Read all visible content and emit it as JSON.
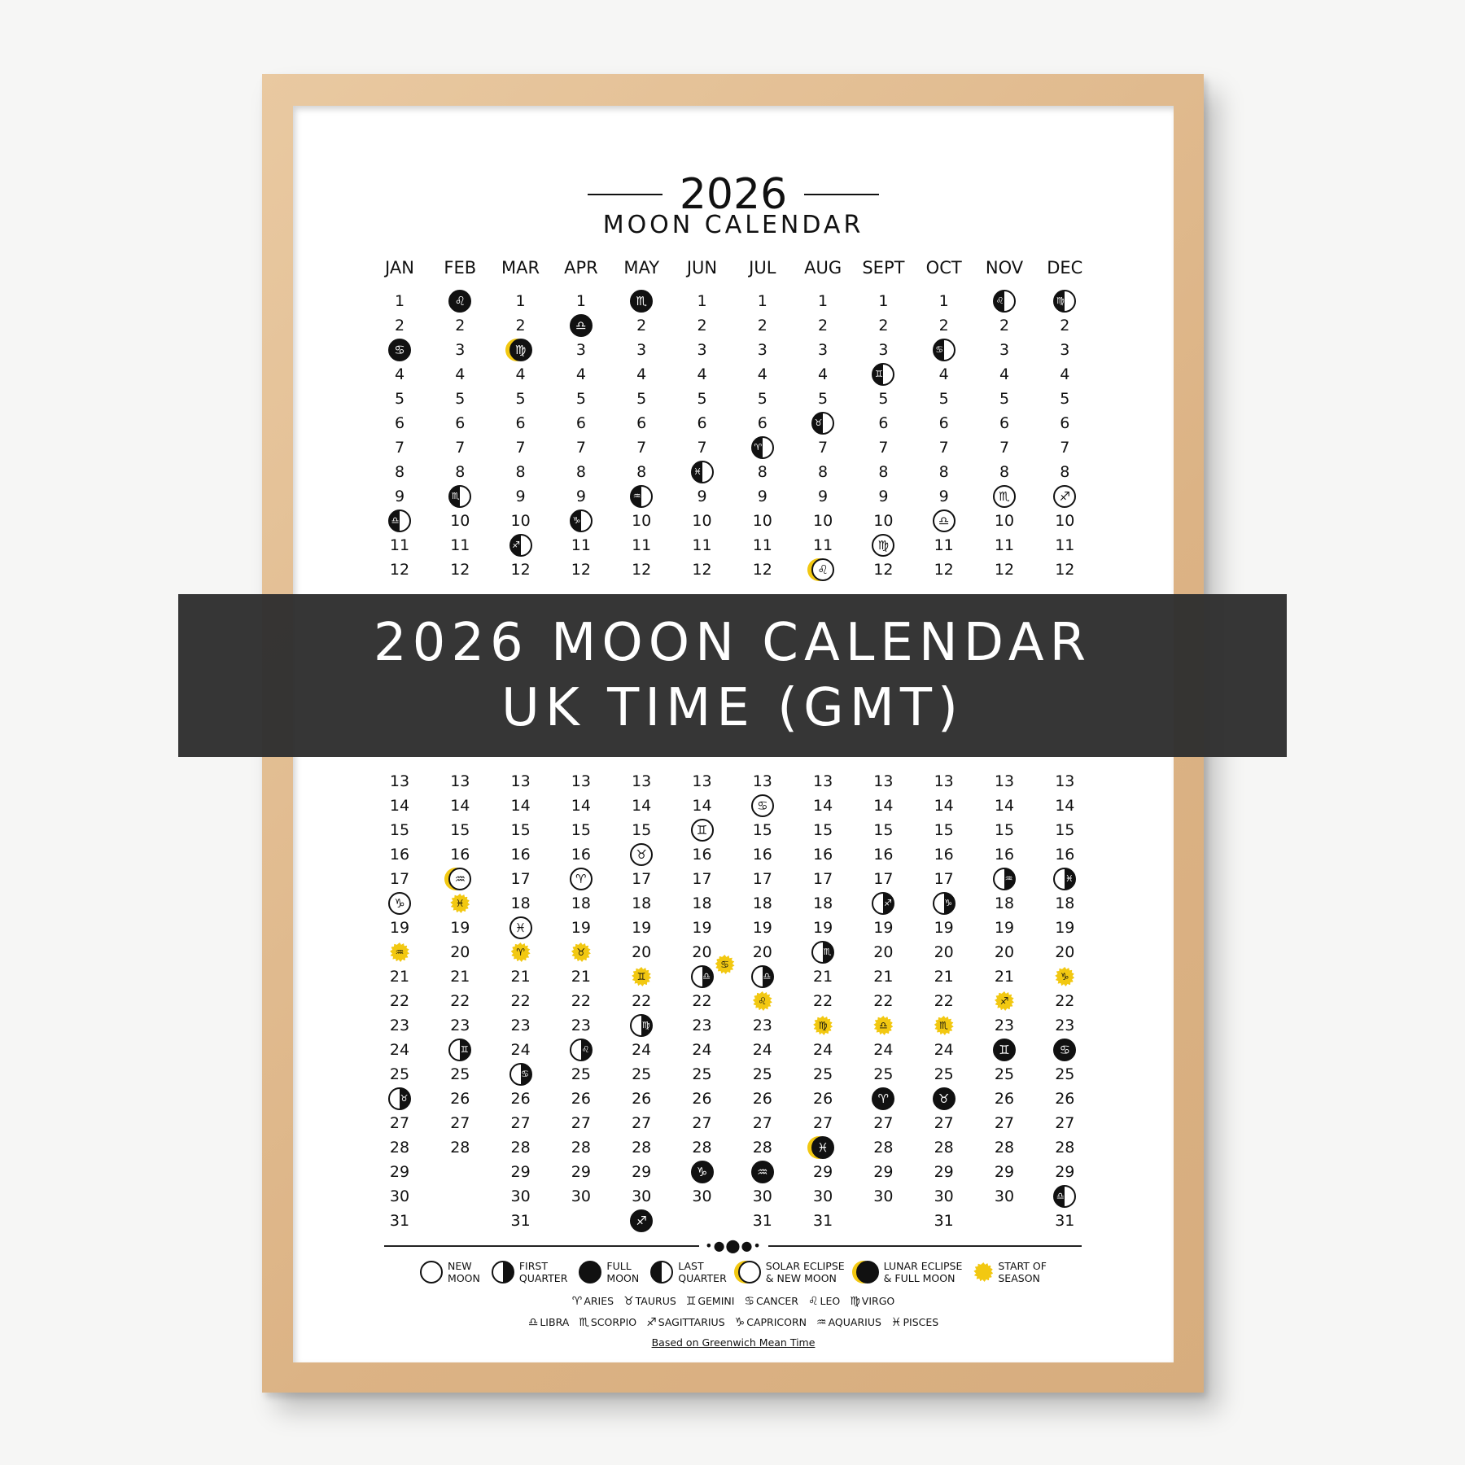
{
  "poster": {
    "year": "2026",
    "subtitle": "MOON CALENDAR",
    "footnote": "Based on Greenwich Mean Time"
  },
  "banner": {
    "line1": "2026 MOON CALENDAR",
    "line2": "UK TIME (GMT)",
    "background": "#303030"
  },
  "colors": {
    "accent_yellow": "#f2c811",
    "ink": "#111111",
    "frame_wood": "#dcb385"
  },
  "months": [
    {
      "label": "JAN",
      "days": 31,
      "events": [
        {
          "day": 3,
          "phase": "full",
          "sign": "cancer"
        },
        {
          "day": 10,
          "phase": "last",
          "sign": "libra"
        },
        {
          "day": 18,
          "phase": "new",
          "sign": "capricorn"
        },
        {
          "day": 20,
          "phase": "season",
          "sign": "aquarius"
        },
        {
          "day": 26,
          "phase": "first",
          "sign": "taurus"
        }
      ]
    },
    {
      "label": "FEB",
      "days": 28,
      "events": [
        {
          "day": 1,
          "phase": "full",
          "sign": "leo"
        },
        {
          "day": 9,
          "phase": "last",
          "sign": "scorpio"
        },
        {
          "day": 17,
          "phase": "solar",
          "sign": "aquarius"
        },
        {
          "day": 18,
          "phase": "season",
          "sign": "pisces"
        },
        {
          "day": 24,
          "phase": "first",
          "sign": "gemini"
        }
      ]
    },
    {
      "label": "MAR",
      "days": 31,
      "events": [
        {
          "day": 3,
          "phase": "lunar",
          "sign": "virgo"
        },
        {
          "day": 11,
          "phase": "last",
          "sign": "sagittarius"
        },
        {
          "day": 19,
          "phase": "new",
          "sign": "pisces"
        },
        {
          "day": 20,
          "phase": "season",
          "sign": "aries"
        },
        {
          "day": 25,
          "phase": "first",
          "sign": "cancer"
        }
      ]
    },
    {
      "label": "APR",
      "days": 30,
      "events": [
        {
          "day": 2,
          "phase": "full",
          "sign": "libra"
        },
        {
          "day": 10,
          "phase": "last",
          "sign": "capricorn"
        },
        {
          "day": 17,
          "phase": "new",
          "sign": "aries"
        },
        {
          "day": 20,
          "phase": "season",
          "sign": "taurus"
        },
        {
          "day": 24,
          "phase": "first",
          "sign": "leo"
        }
      ]
    },
    {
      "label": "MAY",
      "days": 31,
      "events": [
        {
          "day": 1,
          "phase": "full",
          "sign": "scorpio"
        },
        {
          "day": 9,
          "phase": "last",
          "sign": "aquarius"
        },
        {
          "day": 16,
          "phase": "new",
          "sign": "taurus"
        },
        {
          "day": 21,
          "phase": "season",
          "sign": "gemini"
        },
        {
          "day": 23,
          "phase": "first",
          "sign": "virgo"
        },
        {
          "day": 31,
          "phase": "full",
          "sign": "sagittarius"
        }
      ]
    },
    {
      "label": "JUN",
      "days": 30,
      "events": [
        {
          "day": 8,
          "phase": "last",
          "sign": "pisces"
        },
        {
          "day": 15,
          "phase": "new",
          "sign": "gemini"
        },
        {
          "day": 21,
          "phase": "first",
          "sign": "libra",
          "extra": {
            "phase": "season",
            "sign": "cancer"
          }
        },
        {
          "day": 29,
          "phase": "full",
          "sign": "capricorn"
        }
      ]
    },
    {
      "label": "JUL",
      "days": 31,
      "events": [
        {
          "day": 7,
          "phase": "last",
          "sign": "aries"
        },
        {
          "day": 14,
          "phase": "new",
          "sign": "cancer"
        },
        {
          "day": 21,
          "phase": "first",
          "sign": "libra"
        },
        {
          "day": 22,
          "phase": "season",
          "sign": "leo"
        },
        {
          "day": 29,
          "phase": "full",
          "sign": "aquarius"
        }
      ]
    },
    {
      "label": "AUG",
      "days": 31,
      "events": [
        {
          "day": 6,
          "phase": "last",
          "sign": "taurus"
        },
        {
          "day": 12,
          "phase": "solar",
          "sign": "leo"
        },
        {
          "day": 20,
          "phase": "first",
          "sign": "scorpio"
        },
        {
          "day": 23,
          "phase": "season",
          "sign": "virgo"
        },
        {
          "day": 28,
          "phase": "lunar",
          "sign": "pisces"
        }
      ]
    },
    {
      "label": "SEPT",
      "days": 30,
      "events": [
        {
          "day": 4,
          "phase": "last",
          "sign": "gemini"
        },
        {
          "day": 11,
          "phase": "new",
          "sign": "virgo"
        },
        {
          "day": 18,
          "phase": "first",
          "sign": "sagittarius"
        },
        {
          "day": 23,
          "phase": "season",
          "sign": "libra"
        },
        {
          "day": 26,
          "phase": "full",
          "sign": "aries"
        }
      ]
    },
    {
      "label": "OCT",
      "days": 31,
      "events": [
        {
          "day": 3,
          "phase": "last",
          "sign": "cancer"
        },
        {
          "day": 10,
          "phase": "new",
          "sign": "libra"
        },
        {
          "day": 18,
          "phase": "first",
          "sign": "capricorn"
        },
        {
          "day": 23,
          "phase": "season",
          "sign": "scorpio"
        },
        {
          "day": 26,
          "phase": "full",
          "sign": "taurus"
        }
      ]
    },
    {
      "label": "NOV",
      "days": 30,
      "events": [
        {
          "day": 1,
          "phase": "last",
          "sign": "leo"
        },
        {
          "day": 9,
          "phase": "new",
          "sign": "scorpio"
        },
        {
          "day": 17,
          "phase": "first",
          "sign": "aquarius"
        },
        {
          "day": 22,
          "phase": "season",
          "sign": "sagittarius"
        },
        {
          "day": 24,
          "phase": "full",
          "sign": "gemini"
        }
      ]
    },
    {
      "label": "DEC",
      "days": 31,
      "events": [
        {
          "day": 1,
          "phase": "last",
          "sign": "virgo"
        },
        {
          "day": 9,
          "phase": "new",
          "sign": "sagittarius"
        },
        {
          "day": 17,
          "phase": "first",
          "sign": "pisces"
        },
        {
          "day": 21,
          "phase": "season",
          "sign": "capricorn"
        },
        {
          "day": 24,
          "phase": "full",
          "sign": "cancer"
        },
        {
          "day": 30,
          "phase": "last",
          "sign": "libra"
        }
      ]
    }
  ],
  "legend": {
    "phases": [
      {
        "phase": "new",
        "label": "NEW\nMOON"
      },
      {
        "phase": "first",
        "label": "FIRST\nQUARTER"
      },
      {
        "phase": "full",
        "label": "FULL\nMOON"
      },
      {
        "phase": "last",
        "label": "LAST\nQUARTER"
      },
      {
        "phase": "solar",
        "label": "SOLAR ECLIPSE\n& NEW MOON"
      },
      {
        "phase": "lunar",
        "label": "LUNAR ECLIPSE\n& FULL MOON"
      },
      {
        "phase": "season",
        "label": "START OF\nSEASON"
      }
    ],
    "zodiac_row1": [
      {
        "sign": "aries",
        "label": "ARIES"
      },
      {
        "sign": "taurus",
        "label": "TAURUS"
      },
      {
        "sign": "gemini",
        "label": "GEMINI"
      },
      {
        "sign": "cancer",
        "label": "CANCER"
      },
      {
        "sign": "leo",
        "label": "LEO"
      },
      {
        "sign": "virgo",
        "label": "VIRGO"
      }
    ],
    "zodiac_row2": [
      {
        "sign": "libra",
        "label": "LIBRA"
      },
      {
        "sign": "scorpio",
        "label": "SCORPIO"
      },
      {
        "sign": "sagittarius",
        "label": "SAGITTARIUS"
      },
      {
        "sign": "capricorn",
        "label": "CAPRICORN"
      },
      {
        "sign": "aquarius",
        "label": "AQUARIUS"
      },
      {
        "sign": "pisces",
        "label": "PISCES"
      }
    ]
  }
}
